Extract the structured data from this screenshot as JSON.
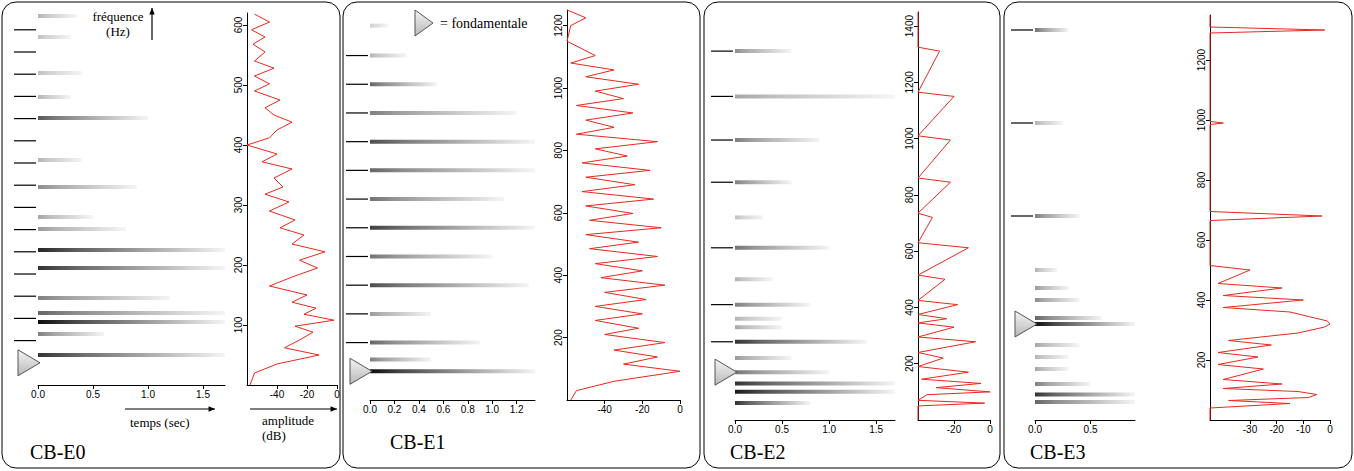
{
  "figure": {
    "fundamental_legend": "= fondamentale",
    "frequency_label": "fréquence (Hz)",
    "time_label": "temps (sec)",
    "amplitude_label": "amplitude (dB)"
  },
  "chart_data": [
    {
      "type": "spectrogram",
      "title": "CB-E0",
      "ylim": [
        0,
        620
      ],
      "yticks": [
        100,
        200,
        300,
        400,
        500,
        600
      ],
      "fundamental": 37,
      "partial_markers": [
        74,
        111,
        148,
        185,
        222,
        259,
        296,
        333,
        370,
        407,
        444,
        481,
        518,
        555,
        592
      ],
      "spectrogram": {
        "xlim": [
          0,
          1.7
        ],
        "xticks": [
          {
            "value": 0,
            "label": "0.0"
          },
          0.5,
          {
            "value": 1,
            "label": "1.0"
          },
          1.5
        ],
        "bands": {
          "freq": [
            50,
            85,
            105,
            120,
            145,
            195,
            225,
            260,
            280,
            330,
            375,
            445,
            480,
            520,
            580,
            615
          ],
          "duration": [
            1.7,
            0.6,
            1.7,
            1.7,
            1.2,
            1.7,
            1.7,
            0.8,
            0.5,
            0.9,
            0.4,
            1.0,
            0.3,
            0.4,
            0.3,
            0.35
          ],
          "level": [
            0.8,
            0.5,
            0.95,
            0.6,
            0.5,
            0.8,
            0.85,
            0.4,
            0.35,
            0.45,
            0.3,
            0.65,
            0.3,
            0.25,
            0.25,
            0.3
          ]
        }
      },
      "spectrum": {
        "color": "#e8281e",
        "xlim": [
          -60,
          0
        ],
        "xticks": [
          -40,
          -20,
          0
        ],
        "freq": [
          0,
          20,
          35,
          50,
          62,
          75,
          88,
          98,
          108,
          118,
          128,
          138,
          150,
          165,
          180,
          195,
          208,
          222,
          235,
          250,
          262,
          275,
          290,
          305,
          318,
          330,
          345,
          360,
          372,
          385,
          400,
          412,
          425,
          438,
          450,
          462,
          475,
          490,
          502,
          515,
          528,
          540,
          555,
          568,
          580,
          592,
          605,
          618
        ],
        "amplitude": [
          -58,
          -55,
          -40,
          -12,
          -35,
          -25,
          -16,
          -28,
          -2,
          -22,
          -14,
          -30,
          -20,
          -45,
          -30,
          -13,
          -25,
          -8,
          -30,
          -22,
          -38,
          -28,
          -45,
          -32,
          -48,
          -36,
          -42,
          -30,
          -50,
          -40,
          -60,
          -45,
          -40,
          -30,
          -42,
          -48,
          -38,
          -55,
          -45,
          -55,
          -42,
          -55,
          -48,
          -56,
          -48,
          -57,
          -45,
          -55
        ]
      }
    },
    {
      "type": "spectrogram",
      "title": "CB-E1",
      "ylim": [
        0,
        1250
      ],
      "yticks": [
        200,
        400,
        600,
        800,
        1000,
        1200
      ],
      "fundamental": 92,
      "partial_markers": [
        184,
        276,
        368,
        460,
        552,
        644,
        736,
        828,
        920,
        1012,
        1104
      ],
      "spectrogram": {
        "xlim": [
          0,
          1.35
        ],
        "xticks": [
          {
            "value": 0,
            "label": "0.0"
          },
          0.2,
          0.4,
          0.6,
          0.8,
          {
            "value": 1,
            "label": "1.0"
          },
          1.2
        ],
        "bands": {
          "freq": [
            92,
            130,
            184,
            276,
            368,
            460,
            552,
            644,
            736,
            828,
            920,
            1012,
            1104,
            1200
          ],
          "duration": [
            1.35,
            0.5,
            0.9,
            0.5,
            1.3,
            1.0,
            1.35,
            1.1,
            1.35,
            1.35,
            1.2,
            0.55,
            0.3,
            0.15
          ],
          "level": [
            0.95,
            0.5,
            0.6,
            0.4,
            0.7,
            0.55,
            0.75,
            0.55,
            0.6,
            0.7,
            0.5,
            0.6,
            0.3,
            0.2
          ]
        }
      },
      "spectrum": {
        "color": "#e8281e",
        "xlim": [
          -60,
          0
        ],
        "xticks": [
          -40,
          -20,
          0
        ],
        "freq": [
          0,
          30,
          60,
          92,
          115,
          138,
          160,
          184,
          210,
          230,
          255,
          276,
          300,
          322,
          345,
          368,
          392,
          414,
          437,
          460,
          485,
          506,
          530,
          552,
          576,
          598,
          622,
          644,
          668,
          690,
          714,
          736,
          760,
          782,
          805,
          828,
          852,
          874,
          897,
          920,
          944,
          966,
          990,
          1012,
          1036,
          1058,
          1080,
          1104,
          1150,
          1200,
          1225,
          1250
        ],
        "amplitude": [
          -58,
          -55,
          -35,
          0,
          -30,
          -12,
          -35,
          -8,
          -40,
          -22,
          -45,
          -20,
          -45,
          -18,
          -40,
          -8,
          -42,
          -20,
          -45,
          -12,
          -48,
          -22,
          -50,
          -10,
          -48,
          -25,
          -50,
          -14,
          -52,
          -24,
          -50,
          -16,
          -52,
          -28,
          -45,
          -12,
          -55,
          -35,
          -50,
          -25,
          -55,
          -30,
          -45,
          -22,
          -50,
          -35,
          -58,
          -45,
          -60,
          -58,
          -50,
          -60
        ]
      }
    },
    {
      "type": "spectrogram",
      "title": "CB-E2",
      "ylim": [
        0,
        1450
      ],
      "yticks": [
        200,
        400,
        600,
        800,
        1000,
        1200,
        1400
      ],
      "fundamental": 170,
      "partial_markers": [
        278,
        410,
        612,
        845,
        995,
        1150,
        1311
      ],
      "spectrogram": {
        "xlim": [
          0,
          1.7
        ],
        "xticks": [
          {
            "value": 0,
            "label": "0.0"
          },
          0.5,
          {
            "value": 1,
            "label": "1.0"
          },
          1.5
        ],
        "bands": {
          "freq": [
            60,
            100,
            130,
            170,
            220,
            278,
            330,
            360,
            410,
            500,
            612,
            720,
            845,
            995,
            1150,
            1311
          ],
          "duration": [
            0.8,
            1.7,
            1.7,
            1.0,
            0.6,
            1.4,
            0.5,
            0.5,
            0.8,
            0.4,
            1.0,
            0.3,
            0.6,
            0.9,
            1.7,
            0.6
          ],
          "level": [
            0.8,
            0.9,
            0.8,
            0.55,
            0.4,
            0.8,
            0.35,
            0.3,
            0.5,
            0.3,
            0.55,
            0.25,
            0.5,
            0.5,
            0.35,
            0.45
          ]
        }
      },
      "spectrum": {
        "color": "#e8281e",
        "xlim": [
          -40,
          0
        ],
        "xticks": [
          -20,
          0
        ],
        "freq": [
          0,
          50,
          60,
          70,
          90,
          100,
          115,
          130,
          145,
          170,
          190,
          220,
          240,
          278,
          295,
          330,
          345,
          360,
          375,
          410,
          425,
          500,
          515,
          612,
          630,
          720,
          735,
          845,
          860,
          995,
          1010,
          1150,
          1165,
          1311,
          1325,
          1450
        ],
        "amplitude": [
          -40,
          -40,
          -3,
          -40,
          -35,
          0,
          -30,
          -5,
          -38,
          -12,
          -40,
          -26,
          -40,
          -8,
          -40,
          -20,
          -40,
          -24,
          -40,
          -18,
          -40,
          -25,
          -40,
          -12,
          -40,
          -32,
          -40,
          -22,
          -40,
          -22,
          -40,
          -20,
          -40,
          -28,
          -40,
          -40
        ]
      }
    },
    {
      "type": "spectrogram",
      "title": "CB-E3",
      "ylim": [
        0,
        1350
      ],
      "yticks": [
        200,
        400,
        600,
        800,
        1000,
        1200
      ],
      "fundamental": 320,
      "partial_markers": [
        680,
        990,
        1300
      ],
      "spectrogram": {
        "xlim": [
          0,
          0.9
        ],
        "xticks": [
          {
            "value": 0,
            "label": "0.0"
          },
          0.5
        ],
        "bands": {
          "freq": [
            60,
            85,
            120,
            170,
            210,
            250,
            320,
            340,
            400,
            440,
            500,
            680,
            990,
            1300
          ],
          "duration": [
            0.9,
            0.9,
            0.5,
            0.3,
            0.3,
            0.4,
            0.9,
            0.6,
            0.4,
            0.3,
            0.2,
            0.4,
            0.25,
            0.3
          ],
          "level": [
            0.6,
            0.8,
            0.5,
            0.35,
            0.3,
            0.35,
            0.95,
            0.6,
            0.45,
            0.4,
            0.3,
            0.5,
            0.3,
            0.55
          ]
        }
      },
      "spectrum": {
        "color": "#e8281e",
        "xlim": [
          -45,
          0
        ],
        "xticks": [
          -30,
          -20,
          -10,
          0
        ],
        "freq": [
          0,
          40,
          55,
          65,
          75,
          85,
          95,
          105,
          120,
          135,
          170,
          185,
          210,
          225,
          250,
          265,
          290,
          310,
          320,
          330,
          345,
          360,
          375,
          400,
          415,
          440,
          455,
          500,
          515,
          665,
          680,
          695,
          985,
          990,
          995,
          1290,
          1300,
          1310,
          1350
        ],
        "amplitude": [
          -45,
          -45,
          -15,
          -38,
          -8,
          -5,
          -12,
          -40,
          -18,
          -40,
          -25,
          -42,
          -27,
          -42,
          -22,
          -38,
          -12,
          -2,
          0,
          -1,
          -8,
          -15,
          -40,
          -10,
          -40,
          -18,
          -42,
          -30,
          -45,
          -45,
          -3,
          -45,
          -45,
          -40,
          -45,
          -45,
          -2,
          -45,
          -45
        ]
      }
    }
  ]
}
